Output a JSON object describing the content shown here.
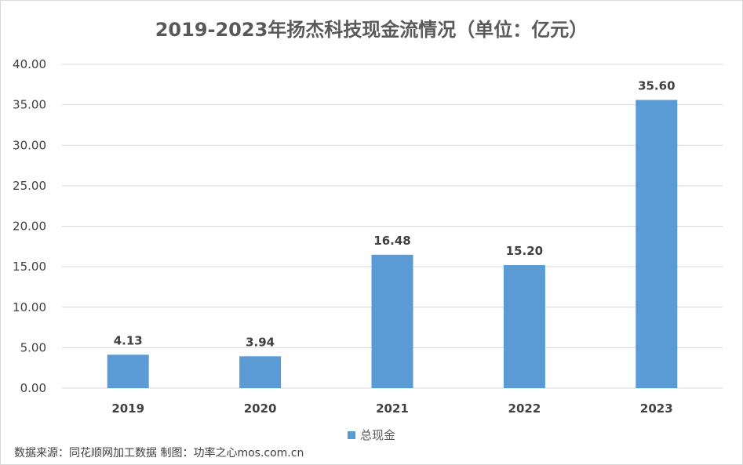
{
  "chart_data": {
    "type": "bar",
    "title": "2019-2023年扬杰科技现金流情况（单位：亿元）",
    "categories": [
      "2019",
      "2020",
      "2021",
      "2022",
      "2023"
    ],
    "series": [
      {
        "name": "总现金",
        "values": [
          4.13,
          3.94,
          16.48,
          15.2,
          35.6
        ],
        "color": "#5b9bd5"
      }
    ],
    "value_labels": [
      "4.13",
      "3.94",
      "16.48",
      "15.20",
      "35.60"
    ],
    "yticks": [
      "0.00",
      "5.00",
      "10.00",
      "15.00",
      "20.00",
      "25.00",
      "30.00",
      "35.00",
      "40.00"
    ],
    "ylim": [
      0,
      40
    ],
    "grid": true,
    "legend_position": "bottom",
    "source_note": "数据来源：同花顺网加工数据 制图：功率之心mos.com.cn"
  }
}
